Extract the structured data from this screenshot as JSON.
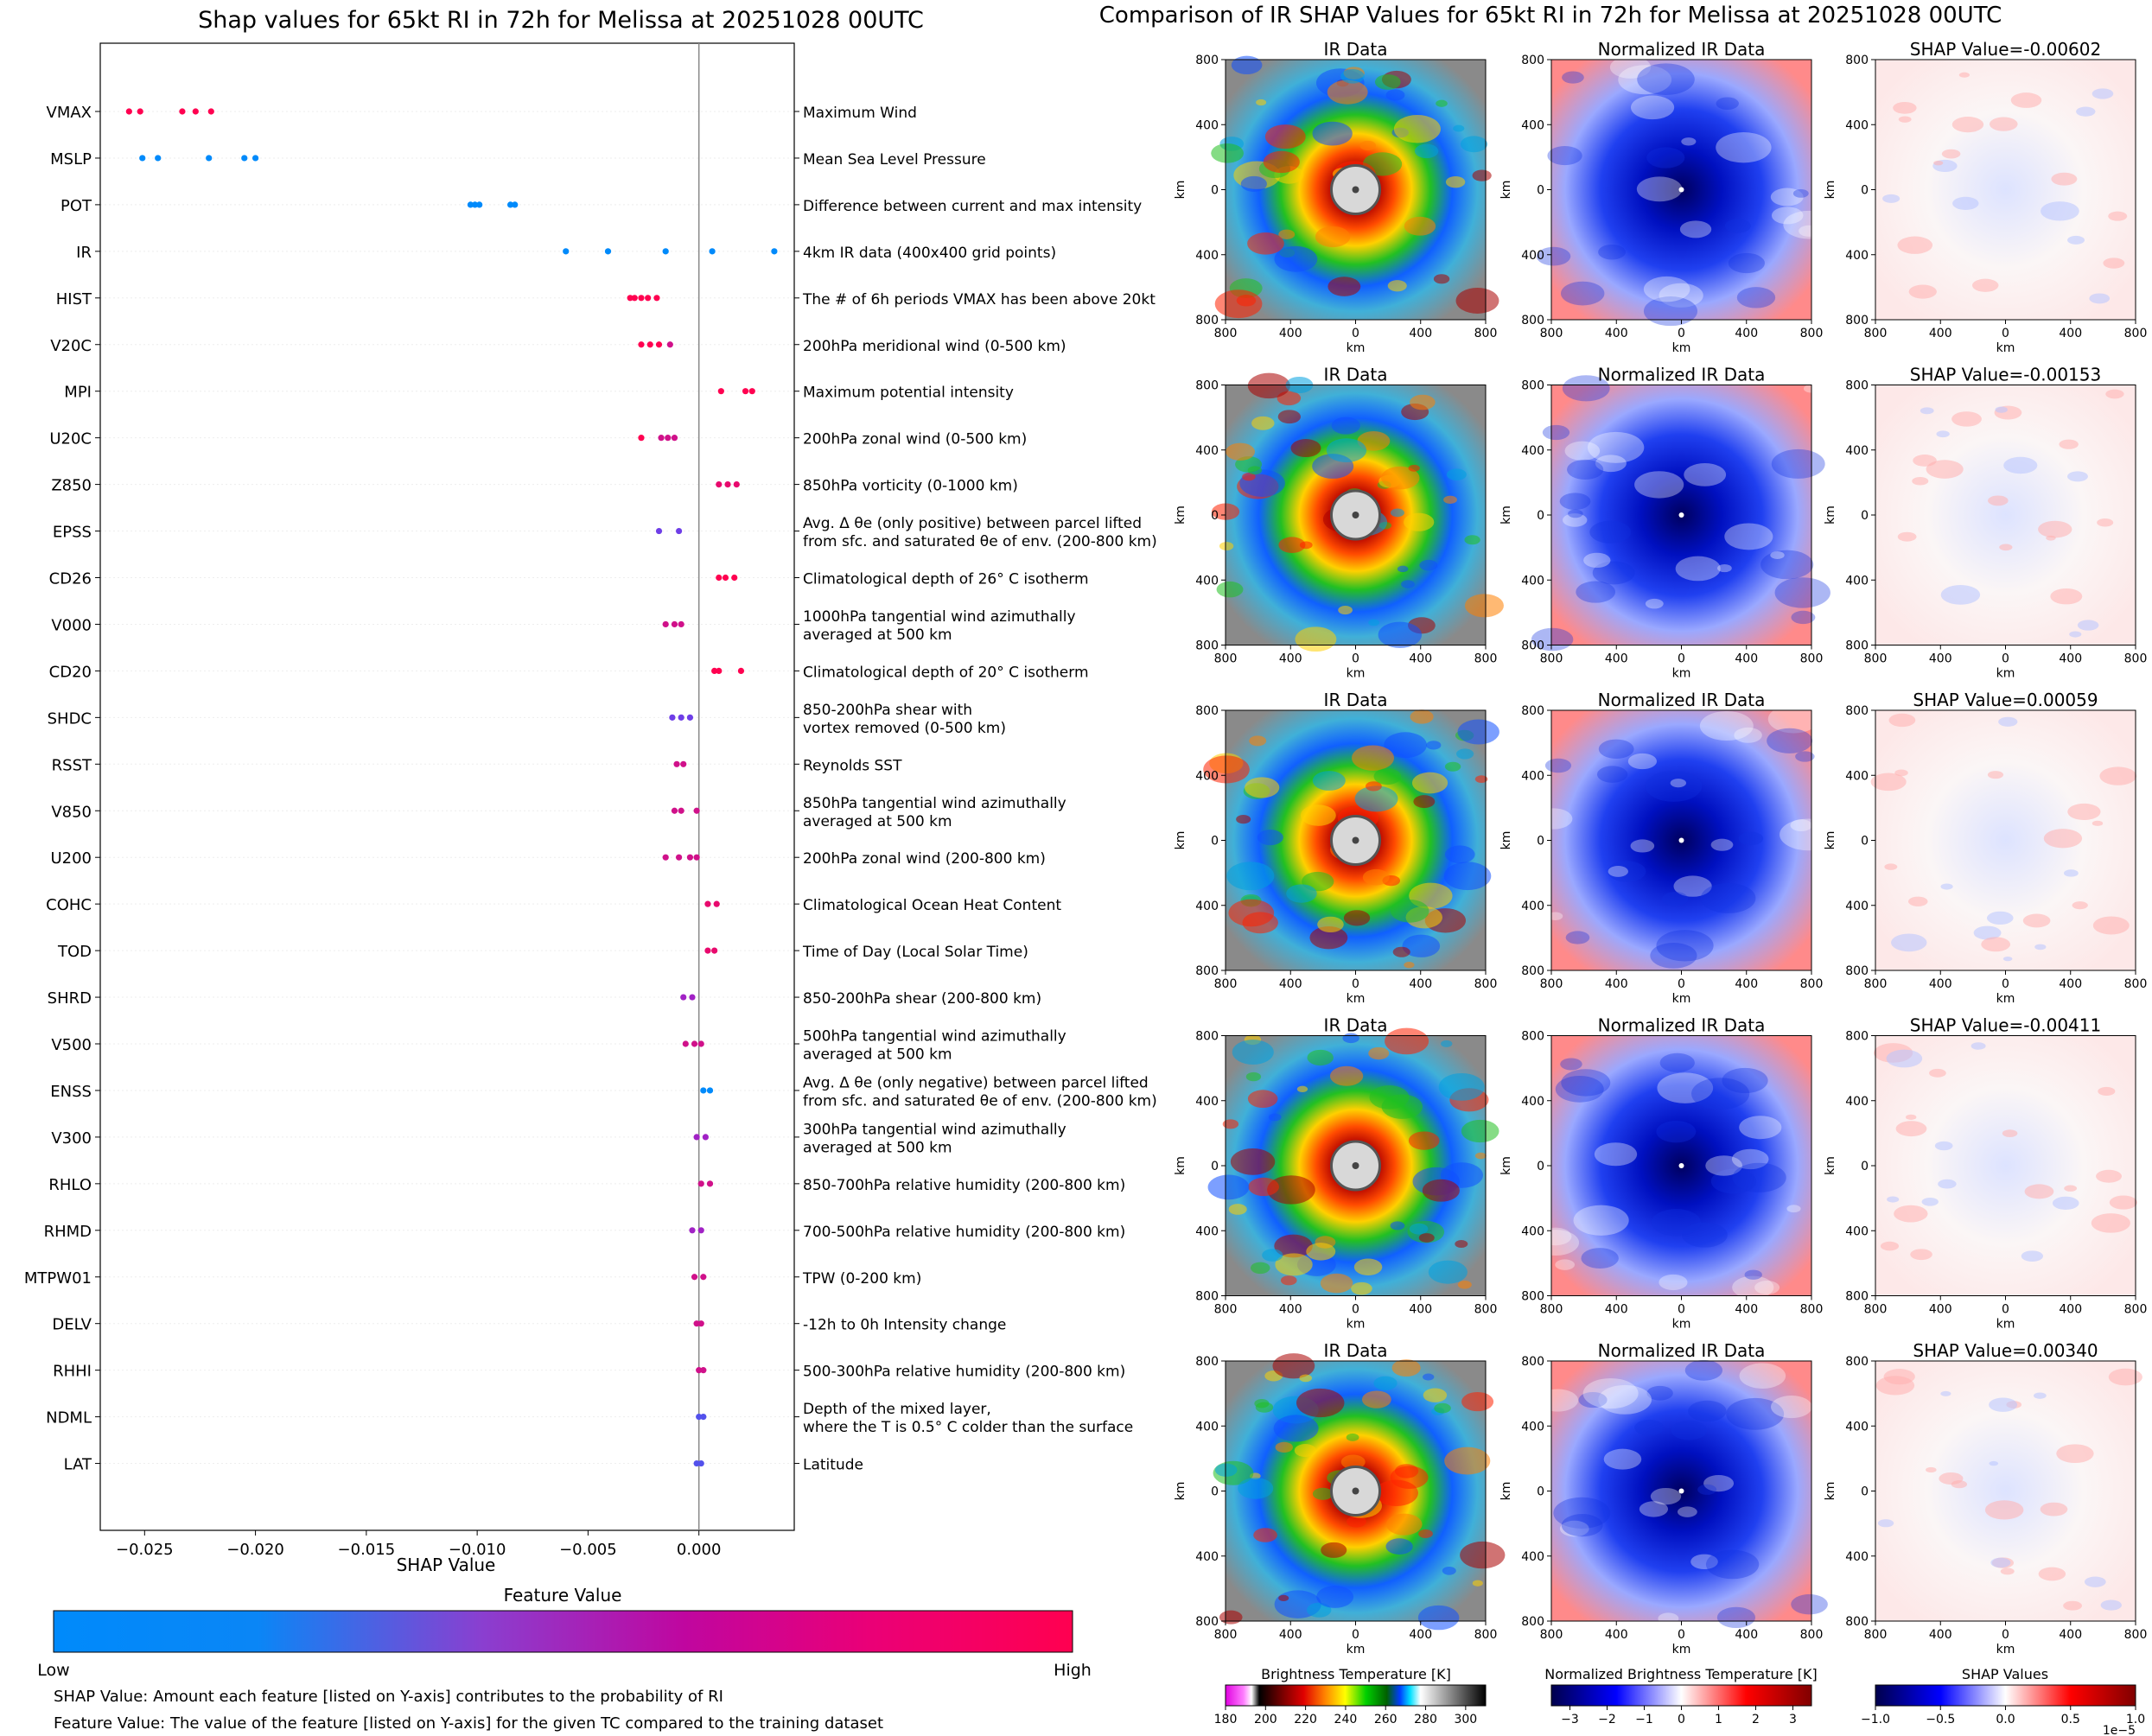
{
  "left_chart": {
    "title": "Shap values for 65kt RI in 72h for Melissa at 20251028 00UTC",
    "xlabel": "SHAP Value",
    "xticks": [
      "−0.025",
      "−0.020",
      "−0.015",
      "−0.010",
      "−0.005",
      "0.000"
    ],
    "colorbar_title": "Feature Value",
    "colorbar_low": "Low",
    "colorbar_high": "High",
    "footnote1": "SHAP Value: Amount each feature [listed on Y-axis] contributes to the probability of RI",
    "footnote2": "Feature Value: The value of the feature [listed on Y-axis] for the given TC compared to the training dataset"
  },
  "right_panel": {
    "title": "Comparison of IR SHAP Values for 65kt RI in 72h for Melissa at 20251028 00UTC",
    "col_titles": [
      "IR Data",
      "Normalized IR Data"
    ],
    "shap_titles": [
      "SHAP Value=-0.00602",
      "SHAP Value=-0.00153",
      "SHAP Value=0.00059",
      "SHAP Value=-0.00411",
      "SHAP Value=0.00340"
    ],
    "yticks": [
      "800",
      "400",
      "0",
      "400",
      "800"
    ],
    "xticks": [
      "800",
      "400",
      "0",
      "400",
      "800"
    ],
    "axis_unit": "km",
    "cb1_label": "Brightness Temperature [K]",
    "cb1_ticks": [
      "180",
      "200",
      "220",
      "240",
      "260",
      "280",
      "300"
    ],
    "cb2_label": "Normalized Brightness Temperature [K]",
    "cb2_ticks": [
      "−3",
      "−2",
      "−1",
      "0",
      "1",
      "2",
      "3"
    ],
    "cb3_label": "SHAP Values",
    "cb3_ticks": [
      "−1.0",
      "−0.5",
      "0.0",
      "0.5",
      "1.0"
    ],
    "cb3_exp": "1e−5"
  },
  "colors": {
    "low": "#008afb",
    "mid": "#8a2be2",
    "high": "#ff0050"
  },
  "chart_data": [
    {
      "type": "scatter",
      "title": "Shap values for 65kt RI in 72h for Melissa at 20251028 00UTC",
      "xlabel": "SHAP Value",
      "xlim": [
        -0.027,
        0.0043
      ],
      "features": [
        {
          "code": "VMAX",
          "desc": [
            "Maximum Wind"
          ],
          "points": [
            [
              -0.0257,
              1
            ],
            [
              -0.0252,
              1
            ],
            [
              -0.0233,
              1
            ],
            [
              -0.0227,
              1
            ],
            [
              -0.022,
              1
            ]
          ]
        },
        {
          "code": "MSLP",
          "desc": [
            "Mean Sea Level Pressure"
          ],
          "points": [
            [
              -0.0251,
              0
            ],
            [
              -0.0244,
              0
            ],
            [
              -0.0221,
              0
            ],
            [
              -0.0205,
              0
            ],
            [
              -0.02,
              0
            ]
          ]
        },
        {
          "code": "POT",
          "desc": [
            "Difference between current and max intensity"
          ],
          "points": [
            [
              -0.0103,
              0
            ],
            [
              -0.0101,
              0
            ],
            [
              -0.0099,
              0
            ],
            [
              -0.0085,
              0
            ],
            [
              -0.0083,
              0
            ]
          ]
        },
        {
          "code": "IR",
          "desc": [
            "4km IR data (400x400 grid points)"
          ],
          "points": [
            [
              -0.006,
              0
            ],
            [
              -0.0041,
              0
            ],
            [
              -0.0015,
              0
            ],
            [
              0.0006,
              0
            ],
            [
              0.0034,
              0
            ]
          ]
        },
        {
          "code": "HIST",
          "desc": [
            "The # of 6h periods VMAX has been above 20kt"
          ],
          "points": [
            [
              -0.0031,
              1
            ],
            [
              -0.0029,
              1
            ],
            [
              -0.0026,
              1
            ],
            [
              -0.0023,
              1
            ],
            [
              -0.0019,
              1
            ]
          ]
        },
        {
          "code": "V20C",
          "desc": [
            "200hPa meridional wind (0-500 km)"
          ],
          "points": [
            [
              -0.0026,
              1
            ],
            [
              -0.0022,
              1
            ],
            [
              -0.0018,
              1
            ],
            [
              -0.0013,
              0.8
            ]
          ]
        },
        {
          "code": "MPI",
          "desc": [
            "Maximum potential intensity"
          ],
          "points": [
            [
              0.001,
              1
            ],
            [
              0.0021,
              1
            ],
            [
              0.0024,
              1
            ]
          ]
        },
        {
          "code": "U20C",
          "desc": [
            "200hPa zonal wind (0-500 km)"
          ],
          "points": [
            [
              -0.0026,
              1
            ],
            [
              -0.0017,
              0.8
            ],
            [
              -0.0014,
              0.8
            ],
            [
              -0.0011,
              0.8
            ]
          ]
        },
        {
          "code": "Z850",
          "desc": [
            "850hPa vorticity (0-1000 km)"
          ],
          "points": [
            [
              0.0009,
              0.9
            ],
            [
              0.0013,
              0.9
            ],
            [
              0.0017,
              0.9
            ]
          ]
        },
        {
          "code": "EPSS",
          "desc": [
            "Avg. Δ θe (only positive) between parcel lifted",
            "from sfc. and saturated θe of env. (200-800 km)"
          ],
          "points": [
            [
              -0.0018,
              0.4
            ],
            [
              -0.0009,
              0.4
            ]
          ]
        },
        {
          "code": "CD26",
          "desc": [
            "Climatological depth of 26° C isotherm"
          ],
          "points": [
            [
              0.0009,
              1
            ],
            [
              0.0012,
              1
            ],
            [
              0.0016,
              1
            ]
          ]
        },
        {
          "code": "V000",
          "desc": [
            "1000hPa tangential wind azimuthally",
            "averaged at 500 km"
          ],
          "points": [
            [
              -0.0015,
              0.8
            ],
            [
              -0.0011,
              0.8
            ],
            [
              -0.0008,
              0.8
            ]
          ]
        },
        {
          "code": "CD20",
          "desc": [
            "Climatological depth of 20° C isotherm"
          ],
          "points": [
            [
              0.0007,
              1
            ],
            [
              0.0009,
              1
            ],
            [
              0.0019,
              1
            ]
          ]
        },
        {
          "code": "SHDC",
          "desc": [
            "850-200hPa shear with",
            "vortex removed (0-500 km)"
          ],
          "points": [
            [
              -0.0012,
              0.4
            ],
            [
              -0.0008,
              0.4
            ],
            [
              -0.0004,
              0.4
            ]
          ]
        },
        {
          "code": "RSST",
          "desc": [
            "Reynolds SST"
          ],
          "points": [
            [
              -0.001,
              0.8
            ],
            [
              -0.0007,
              0.8
            ]
          ]
        },
        {
          "code": "V850",
          "desc": [
            "850hPa tangential wind azimuthally",
            "averaged at 500 km"
          ],
          "points": [
            [
              -0.0011,
              0.8
            ],
            [
              -0.0008,
              0.8
            ],
            [
              -0.0001,
              0.8
            ]
          ]
        },
        {
          "code": "U200",
          "desc": [
            "200hPa zonal wind (200-800 km)"
          ],
          "points": [
            [
              -0.0015,
              0.8
            ],
            [
              -0.0009,
              0.8
            ],
            [
              -0.0004,
              0.8
            ],
            [
              -0.0001,
              0.8
            ]
          ]
        },
        {
          "code": "COHC",
          "desc": [
            "Climatological Ocean Heat Content"
          ],
          "points": [
            [
              0.0004,
              0.9
            ],
            [
              0.0008,
              0.9
            ]
          ]
        },
        {
          "code": "TOD",
          "desc": [
            "Time of Day (Local Solar Time)"
          ],
          "points": [
            [
              0.0004,
              0.9
            ],
            [
              0.0007,
              0.9
            ]
          ]
        },
        {
          "code": "SHRD",
          "desc": [
            "850-200hPa shear (200-800 km)"
          ],
          "points": [
            [
              -0.0007,
              0.6
            ],
            [
              -0.0003,
              0.6
            ]
          ]
        },
        {
          "code": "V500",
          "desc": [
            "500hPa tangential wind azimuthally",
            "averaged at 500 km"
          ],
          "points": [
            [
              -0.0006,
              0.8
            ],
            [
              -0.0002,
              0.8
            ],
            [
              0.0001,
              0.8
            ]
          ]
        },
        {
          "code": "ENSS",
          "desc": [
            "Avg. Δ θe (only negative) between parcel lifted",
            "from sfc. and saturated θe of env. (200-800 km)"
          ],
          "points": [
            [
              0.0002,
              0
            ],
            [
              0.0005,
              0
            ]
          ]
        },
        {
          "code": "V300",
          "desc": [
            "300hPa tangential wind azimuthally",
            "averaged at 500 km"
          ],
          "points": [
            [
              -0.0001,
              0.6
            ],
            [
              0.0003,
              0.6
            ]
          ]
        },
        {
          "code": "RHLO",
          "desc": [
            "850-700hPa relative humidity (200-800 km)"
          ],
          "points": [
            [
              0.0001,
              0.8
            ],
            [
              0.0005,
              0.8
            ]
          ]
        },
        {
          "code": "RHMD",
          "desc": [
            "700-500hPa relative humidity (200-800 km)"
          ],
          "points": [
            [
              -0.0003,
              0.6
            ],
            [
              0.0001,
              0.6
            ]
          ]
        },
        {
          "code": "MTPW01",
          "desc": [
            "TPW (0-200 km)"
          ],
          "points": [
            [
              -0.0002,
              0.8
            ],
            [
              0.0002,
              0.8
            ]
          ]
        },
        {
          "code": "DELV",
          "desc": [
            "-12h to 0h Intensity change"
          ],
          "points": [
            [
              -0.0001,
              0.8
            ],
            [
              0.0001,
              0.8
            ]
          ]
        },
        {
          "code": "RHHI",
          "desc": [
            "500-300hPa relative humidity (200-800 km)"
          ],
          "points": [
            [
              0.0,
              0.8
            ],
            [
              0.0002,
              0.8
            ]
          ]
        },
        {
          "code": "NDML",
          "desc": [
            "Depth of the mixed layer,",
            "where the T is 0.5° C colder than the surface"
          ],
          "points": [
            [
              0.0,
              0.3
            ],
            [
              0.0002,
              0.3
            ]
          ]
        },
        {
          "code": "LAT",
          "desc": [
            "Latitude"
          ],
          "points": [
            [
              -0.0001,
              0.3
            ],
            [
              0.0001,
              0.3
            ]
          ]
        }
      ]
    },
    {
      "type": "heatmap",
      "title": "Comparison of IR SHAP Values for 65kt RI in 72h for Melissa at 20251028 00UTC",
      "rows": 5,
      "columns": [
        "IR Data",
        "Normalized IR Data",
        "SHAP Value"
      ],
      "shap_values": [
        -0.00602,
        -0.00153,
        0.00059,
        -0.00411,
        0.0034
      ],
      "xlim": [
        -800,
        800
      ],
      "ylim": [
        -800,
        800
      ],
      "cb1_range": [
        180,
        310
      ],
      "cb2_range": [
        -3.5,
        3.5
      ],
      "cb3_range": [
        -1e-05,
        1e-05
      ]
    }
  ]
}
